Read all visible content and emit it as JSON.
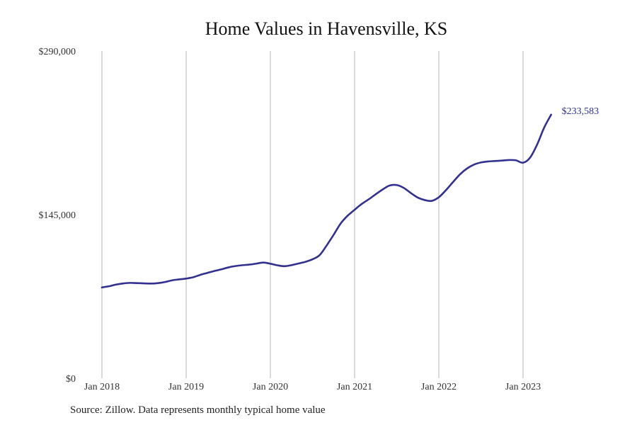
{
  "chart_data": {
    "type": "line",
    "title": "Home Values in Havensville, KS",
    "xlabel": "",
    "ylabel": "",
    "ylim": [
      0,
      290000
    ],
    "y_ticks": [
      {
        "value": 0,
        "label": "$0"
      },
      {
        "value": 145000,
        "label": "$145,000"
      },
      {
        "value": 290000,
        "label": "$290,000"
      }
    ],
    "x_ticks": [
      {
        "value": "2018-01",
        "label": "Jan 2018"
      },
      {
        "value": "2019-01",
        "label": "Jan 2019"
      },
      {
        "value": "2020-01",
        "label": "Jan 2020"
      },
      {
        "value": "2021-01",
        "label": "Jan 2021"
      },
      {
        "value": "2022-01",
        "label": "Jan 2022"
      },
      {
        "value": "2023-01",
        "label": "Jan 2023"
      }
    ],
    "grid": {
      "vertical": true,
      "horizontal": false
    },
    "series": [
      {
        "color": "#32318f",
        "x": [
          "2018-01",
          "2018-02",
          "2018-03",
          "2018-04",
          "2018-05",
          "2018-06",
          "2018-07",
          "2018-08",
          "2018-09",
          "2018-10",
          "2018-11",
          "2018-12",
          "2019-01",
          "2019-02",
          "2019-03",
          "2019-04",
          "2019-05",
          "2019-06",
          "2019-07",
          "2019-08",
          "2019-09",
          "2019-10",
          "2019-11",
          "2019-12",
          "2020-01",
          "2020-02",
          "2020-03",
          "2020-04",
          "2020-05",
          "2020-06",
          "2020-07",
          "2020-08",
          "2020-09",
          "2020-10",
          "2020-11",
          "2020-12",
          "2021-01",
          "2021-02",
          "2021-03",
          "2021-04",
          "2021-05",
          "2021-06",
          "2021-07",
          "2021-08",
          "2021-09",
          "2021-10",
          "2021-11",
          "2021-12",
          "2022-01",
          "2022-02",
          "2022-03",
          "2022-04",
          "2022-05",
          "2022-06",
          "2022-07",
          "2022-08",
          "2022-09",
          "2022-10",
          "2022-11",
          "2022-12",
          "2023-01",
          "2023-02",
          "2023-03",
          "2023-04",
          "2023-05"
        ],
        "y": [
          80500,
          81500,
          83000,
          84000,
          84500,
          84300,
          84100,
          83900,
          84300,
          85300,
          86800,
          87600,
          88300,
          89500,
          91600,
          93300,
          95000,
          96500,
          98200,
          99400,
          100200,
          100700,
          101600,
          102500,
          101500,
          100100,
          99300,
          100200,
          101700,
          103200,
          105400,
          109000,
          117500,
          127000,
          137000,
          144000,
          149300,
          154400,
          158500,
          163000,
          167300,
          170800,
          171200,
          168700,
          164200,
          160100,
          157900,
          157200,
          160400,
          166600,
          173700,
          180600,
          185800,
          189300,
          191200,
          192100,
          192500,
          192900,
          193400,
          193100,
          191000,
          195500,
          207000,
          222000,
          233583
        ],
        "end_label": "$233,583"
      }
    ],
    "source": "Source: Zillow. Data represents monthly typical home value"
  }
}
